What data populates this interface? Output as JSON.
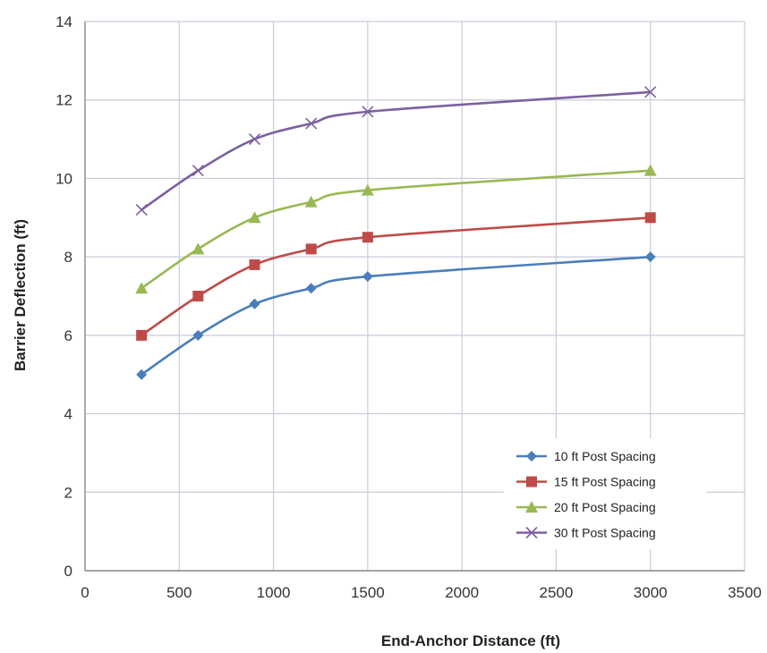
{
  "chart_data": {
    "type": "line",
    "title": "",
    "xlabel": "End-Anchor Distance (ft)",
    "ylabel": "Barrier Deflection (ft)",
    "xlim": [
      0,
      3500
    ],
    "ylim": [
      0,
      14
    ],
    "xticks": [
      "0",
      "500",
      "1000",
      "1500",
      "2000",
      "2500",
      "3000",
      "3500"
    ],
    "yticks": [
      "0",
      "2",
      "4",
      "6",
      "8",
      "10",
      "12",
      "14"
    ],
    "grid": true,
    "legend_position": "bottom-right",
    "x": [
      300,
      600,
      900,
      1200,
      1500,
      3000
    ],
    "series": [
      {
        "name": "10 ft Post Spacing",
        "color": "#4a7ebb",
        "marker": "diamond",
        "values": [
          5.0,
          6.0,
          6.8,
          7.2,
          7.5,
          8.0
        ]
      },
      {
        "name": "15 ft Post Spacing",
        "color": "#be4b48",
        "marker": "square",
        "values": [
          6.0,
          7.0,
          7.8,
          8.2,
          8.5,
          9.0
        ]
      },
      {
        "name": "20 ft Post Spacing",
        "color": "#98b954",
        "marker": "triangle",
        "values": [
          7.2,
          8.2,
          9.0,
          9.4,
          9.7,
          10.2
        ]
      },
      {
        "name": "30 ft Post Spacing",
        "color": "#7d60a0",
        "marker": "x",
        "values": [
          9.2,
          10.2,
          11.0,
          11.4,
          11.7,
          12.2
        ]
      }
    ]
  }
}
